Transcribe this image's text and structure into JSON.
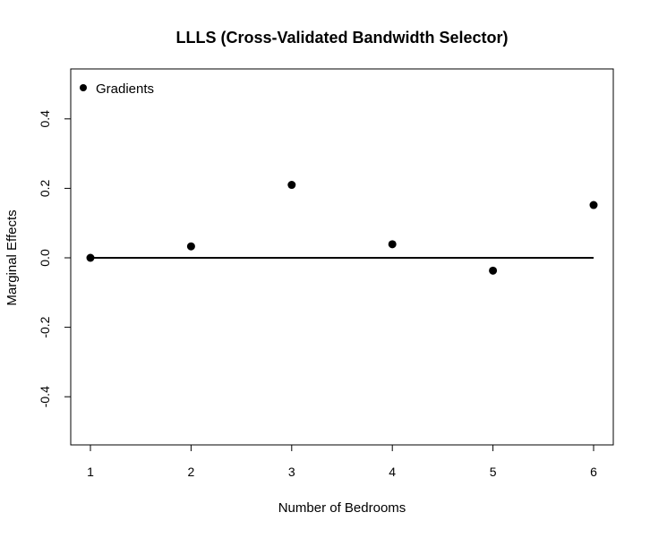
{
  "chart_data": {
    "type": "scatter",
    "title": "LLLS (Cross-Validated Bandwidth Selector)",
    "xlabel": "Number of Bedrooms",
    "ylabel": "Marginal Effects",
    "xlim": [
      1,
      6
    ],
    "ylim": [
      -0.5,
      0.5
    ],
    "x_ticks": [
      1,
      2,
      3,
      4,
      5,
      6
    ],
    "x_tick_labels": [
      "1",
      "2",
      "3",
      "4",
      "5",
      "6"
    ],
    "y_ticks": [
      -0.4,
      -0.2,
      0.0,
      0.2,
      0.4
    ],
    "y_tick_labels": [
      "-0.4",
      "-0.2",
      "0.0",
      "0.2",
      "0.4"
    ],
    "series": [
      {
        "name": "Gradients",
        "x": [
          1,
          2,
          3,
          4,
          5,
          6
        ],
        "y": [
          0.0,
          0.033,
          0.21,
          0.039,
          -0.037,
          0.152
        ]
      }
    ],
    "reference_line": {
      "y": 0.0,
      "x_from": 1,
      "x_to": 6
    },
    "legend": {
      "position": "top-left",
      "entries": [
        "Gradients"
      ]
    },
    "grid": false,
    "colors": {
      "points": "#000000",
      "line": "#000000",
      "axes": "#000000"
    }
  }
}
